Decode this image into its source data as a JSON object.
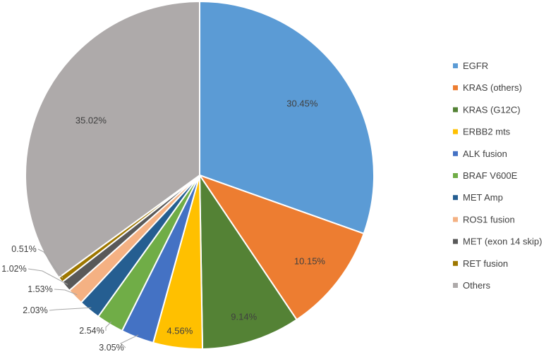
{
  "chart_data": {
    "type": "pie",
    "title": "",
    "legend_position": "right",
    "slices": [
      {
        "name": "EGFR",
        "value": 30.45,
        "label": "30.45%",
        "color": "#5b9bd5"
      },
      {
        "name": "KRAS (others)",
        "value": 10.15,
        "label": "10.15%",
        "color": "#ed7d31"
      },
      {
        "name": "KRAS (G12C)",
        "value": 9.14,
        "label": "9.14%",
        "color": "#548235"
      },
      {
        "name": "ERBB2 mts",
        "value": 4.56,
        "label": "4.56%",
        "color": "#ffc000"
      },
      {
        "name": "ALK fusion",
        "value": 3.05,
        "label": "3.05%",
        "color": "#4472c4"
      },
      {
        "name": "BRAF V600E",
        "value": 2.54,
        "label": "2.54%",
        "color": "#70ad47"
      },
      {
        "name": "MET Amp",
        "value": 2.03,
        "label": "2.03%",
        "color": "#255e91"
      },
      {
        "name": "ROS1 fusion",
        "value": 1.53,
        "label": "1.53%",
        "color": "#f4b183"
      },
      {
        "name": "MET (exon 14 skip)",
        "value": 1.02,
        "label": "1.02%",
        "color": "#595959"
      },
      {
        "name": "RET fusion",
        "value": 0.51,
        "label": "0.51%",
        "color": "#9e7700"
      },
      {
        "name": "Others",
        "value": 35.02,
        "label": "35.02%",
        "color": "#aeaaaa"
      }
    ]
  }
}
